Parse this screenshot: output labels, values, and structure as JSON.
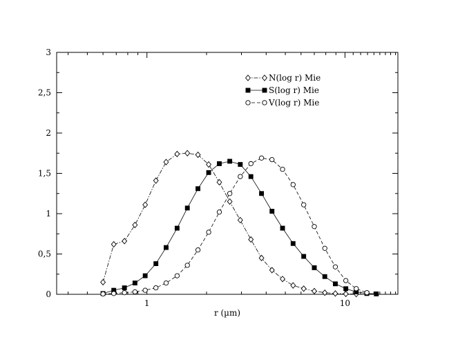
{
  "chart_data": {
    "type": "line",
    "title": "",
    "xlabel": "r (µm)",
    "ylabel": "",
    "x_scale": "log",
    "xlim": [
      0.35,
      18.5
    ],
    "ylim": [
      0,
      3
    ],
    "x_ticks": [
      1,
      10
    ],
    "x_tick_labels": [
      "1",
      "10"
    ],
    "y_ticks": [
      0,
      0.5,
      1,
      1.5,
      2,
      2.5,
      3
    ],
    "y_tick_labels": [
      "0",
      "0,5",
      "1",
      "1,5",
      "2",
      "2,5",
      "3"
    ],
    "grid": false,
    "legend_position": "top-right",
    "series": [
      {
        "name": "N(log r) Mie",
        "marker": "diamond",
        "line_style": "dash-dot",
        "x": [
          0.6,
          0.68,
          0.77,
          0.87,
          0.98,
          1.11,
          1.25,
          1.42,
          1.6,
          1.81,
          2.05,
          2.32,
          2.62,
          2.96,
          3.35,
          3.79,
          4.28,
          4.84,
          5.47,
          6.19,
          7.0,
          7.91,
          8.94,
          10.1,
          11.4
        ],
        "values": [
          0.15,
          0.62,
          0.66,
          0.86,
          1.11,
          1.41,
          1.64,
          1.74,
          1.75,
          1.73,
          1.61,
          1.39,
          1.15,
          0.92,
          0.68,
          0.45,
          0.3,
          0.19,
          0.11,
          0.07,
          0.04,
          0.02,
          0.01,
          0.005,
          0.003
        ]
      },
      {
        "name": "S(log r) Mie",
        "marker": "square-filled",
        "line_style": "solid",
        "x": [
          0.6,
          0.68,
          0.77,
          0.87,
          0.98,
          1.11,
          1.25,
          1.42,
          1.6,
          1.81,
          2.05,
          2.32,
          2.62,
          2.96,
          3.35,
          3.79,
          4.28,
          4.84,
          5.47,
          6.19,
          7.0,
          7.91,
          8.94,
          10.1,
          11.4,
          12.9,
          14.4
        ],
        "values": [
          0.01,
          0.05,
          0.08,
          0.14,
          0.23,
          0.38,
          0.58,
          0.82,
          1.07,
          1.31,
          1.51,
          1.62,
          1.65,
          1.61,
          1.46,
          1.25,
          1.03,
          0.82,
          0.63,
          0.47,
          0.33,
          0.22,
          0.13,
          0.07,
          0.03,
          0.01,
          0.005
        ]
      },
      {
        "name": "V(log r) Mie",
        "marker": "circle",
        "line_style": "dashed",
        "x": [
          0.6,
          0.68,
          0.77,
          0.87,
          0.98,
          1.11,
          1.25,
          1.42,
          1.6,
          1.81,
          2.05,
          2.32,
          2.62,
          2.96,
          3.35,
          3.79,
          4.28,
          4.84,
          5.47,
          6.19,
          7.0,
          7.91,
          8.94,
          10.1,
          11.4,
          12.9
        ],
        "values": [
          0.005,
          0.01,
          0.02,
          0.03,
          0.05,
          0.08,
          0.14,
          0.23,
          0.36,
          0.55,
          0.77,
          1.02,
          1.25,
          1.46,
          1.62,
          1.69,
          1.67,
          1.55,
          1.36,
          1.11,
          0.84,
          0.57,
          0.34,
          0.17,
          0.07,
          0.02
        ]
      }
    ]
  }
}
